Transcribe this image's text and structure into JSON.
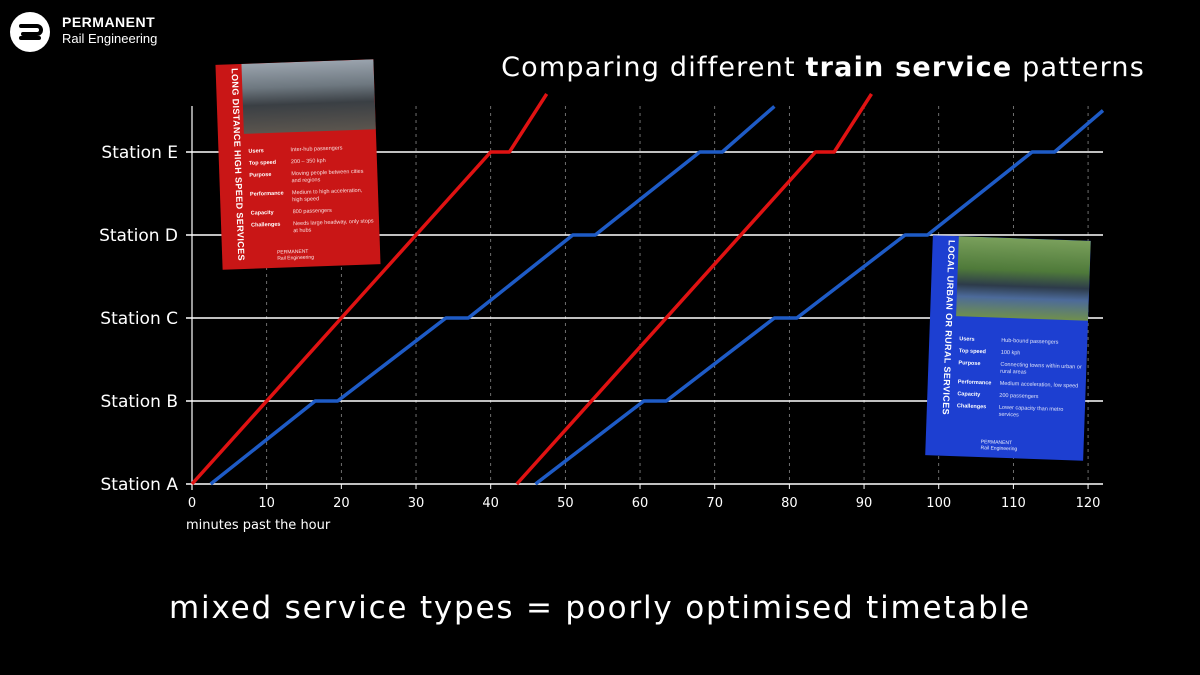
{
  "brand": {
    "line1": "PERMANENT",
    "line2": "Rail Engineering"
  },
  "title": {
    "prefix": "Comparing different ",
    "bold": "train service",
    "suffix": " patterns"
  },
  "footer": "mixed service types = poorly optimised timetable",
  "colors": {
    "background": "#000000",
    "high_speed": "#e01212",
    "local": "#1e5bc6",
    "gridline": "#ffffff"
  },
  "cards": {
    "high_speed": {
      "title": "LONG DISTANCE HIGH SPEED SERVICES",
      "rows": [
        {
          "key": "Users",
          "value": "Inter-hub passengers"
        },
        {
          "key": "Top speed",
          "value": "200 – 350 kph"
        },
        {
          "key": "Purpose",
          "value": "Moving people between cities and regions"
        },
        {
          "key": "Performance",
          "value": "Medium to high acceleration, high speed"
        },
        {
          "key": "Capacity",
          "value": "800 passengers"
        },
        {
          "key": "Challenges",
          "value": "Needs large headway, only stops at hubs"
        }
      ],
      "brand_line1": "PERMANENT",
      "brand_line2": "Rail Engineering"
    },
    "local": {
      "title": "LOCAL URBAN OR RURAL SERVICES",
      "rows": [
        {
          "key": "Users",
          "value": "Hub-bound passengers"
        },
        {
          "key": "Top speed",
          "value": "100 kph"
        },
        {
          "key": "Purpose",
          "value": "Connecting towns within urban or rural areas"
        },
        {
          "key": "Performance",
          "value": "Medium acceleration, low speed"
        },
        {
          "key": "Capacity",
          "value": "200 passengers"
        },
        {
          "key": "Challenges",
          "value": "Lower capacity than metro services"
        }
      ],
      "brand_line1": "PERMANENT",
      "brand_line2": "Rail Engineering"
    }
  },
  "chart_data": {
    "type": "line",
    "xlabel": "minutes past the hour",
    "ylabel": "",
    "xlim": [
      0,
      122
    ],
    "xticks": [
      0,
      10,
      20,
      30,
      40,
      50,
      60,
      70,
      80,
      90,
      100,
      110,
      120
    ],
    "categories": [
      "Station A",
      "Station B",
      "Station C",
      "Station D",
      "Station E"
    ],
    "y_extends_above_top": true,
    "grid": {
      "horizontal": "solid",
      "vertical": "dashed"
    },
    "series": [
      {
        "type": "high_speed",
        "color": "#e01212",
        "points": [
          [
            0,
            0
          ],
          [
            40,
            4
          ],
          [
            42.5,
            4
          ],
          [
            47.5,
            4.7
          ]
        ]
      },
      {
        "type": "local",
        "color": "#1e5bc6",
        "points": [
          [
            2.5,
            0
          ],
          [
            16.5,
            1
          ],
          [
            19.5,
            1
          ],
          [
            34,
            2
          ],
          [
            37,
            2
          ],
          [
            51,
            3
          ],
          [
            54,
            3
          ],
          [
            68,
            4
          ],
          [
            71,
            4
          ],
          [
            78,
            4.55
          ]
        ]
      },
      {
        "type": "high_speed",
        "color": "#e01212",
        "points": [
          [
            43.5,
            0
          ],
          [
            83.5,
            4
          ],
          [
            86,
            4
          ],
          [
            91,
            4.7
          ]
        ]
      },
      {
        "type": "local",
        "color": "#1e5bc6",
        "points": [
          [
            46,
            0
          ],
          [
            60.5,
            1
          ],
          [
            63.5,
            1
          ],
          [
            78,
            2
          ],
          [
            81,
            2
          ],
          [
            95.5,
            3
          ],
          [
            98.5,
            3
          ],
          [
            112.5,
            4
          ],
          [
            115.5,
            4
          ],
          [
            122,
            4.5
          ]
        ]
      }
    ]
  }
}
